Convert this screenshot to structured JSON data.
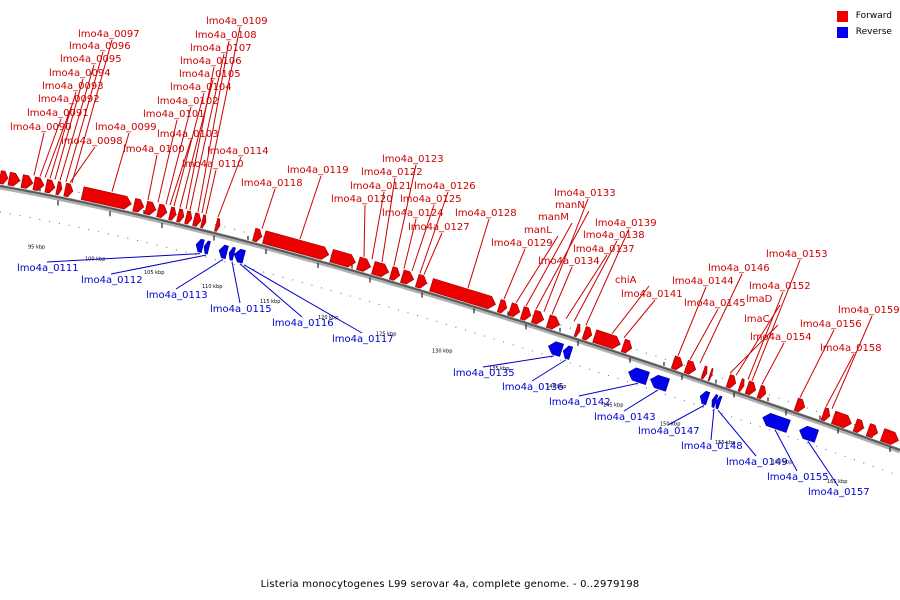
{
  "caption": "Listeria monocytogenes L99 serovar 4a, complete genome. - 0..2979198",
  "legend": {
    "forward_label": "Forward",
    "reverse_label": "Reverse",
    "forward_color": "#ee0000",
    "reverse_color": "#0000ee"
  },
  "forward_labels": [
    "lmo4a_0090",
    "lmo4a_0091",
    "lmo4a_0092",
    "lmo4a_0093",
    "lmo4a_0094",
    "lmo4a_0095",
    "lmo4a_0096",
    "lmo4a_0097",
    "lmo4a_0098",
    "lmo4a_0099",
    "lmo4a_0100",
    "lmo4a_0101",
    "lmo4a_0102",
    "lmo4a_0103",
    "lmo4a_0104",
    "lmo4a_0105",
    "lmo4a_0106",
    "lmo4a_0107",
    "lmo4a_0108",
    "lmo4a_0109",
    "lmo4a_0110",
    "lmo4a_0114",
    "lmo4a_0118",
    "lmo4a_0119",
    "lmo4a_0120",
    "lmo4a_0121",
    "lmo4a_0122",
    "lmo4a_0123",
    "lmo4a_0124",
    "lmo4a_0125",
    "lmo4a_0126",
    "lmo4a_0127",
    "lmo4a_0128",
    "lmo4a_0129",
    "manL",
    "manM",
    "manN",
    "lmo4a_0133",
    "lmo4a_0134",
    "lmo4a_0137",
    "lmo4a_0138",
    "lmo4a_0139",
    "chiA",
    "lmo4a_0141",
    "lmo4a_0144",
    "lmo4a_0145",
    "lmo4a_0146",
    "lmaC",
    "lmaD",
    "lmo4a_0152",
    "lmo4a_0153",
    "lmo4a_0154",
    "lmo4a_0156",
    "lmo4a_0158",
    "lmo4a_0159"
  ],
  "reverse_labels": [
    "lmo4a_0111",
    "lmo4a_0112",
    "lmo4a_0113",
    "lmo4a_0115",
    "lmo4a_0116",
    "lmo4a_0117",
    "lmo4a_0135",
    "lmo4a_0136",
    "lmo4a_0142",
    "lmo4a_0143",
    "lmo4a_0147",
    "lmo4a_0148",
    "lmo4a_0149",
    "lmo4a_0155",
    "lmo4a_0157"
  ],
  "scale_labels": [
    "95 kbp",
    "100 kbp",
    "105 kbp",
    "110 kbp",
    "115 kbp",
    "120 kbp",
    "125 kbp",
    "130 kbp",
    "135 kbp",
    "140 kbp",
    "145 kbp",
    "150 kbp",
    "155 kbp",
    "160 kbp",
    "165 kbp"
  ]
}
